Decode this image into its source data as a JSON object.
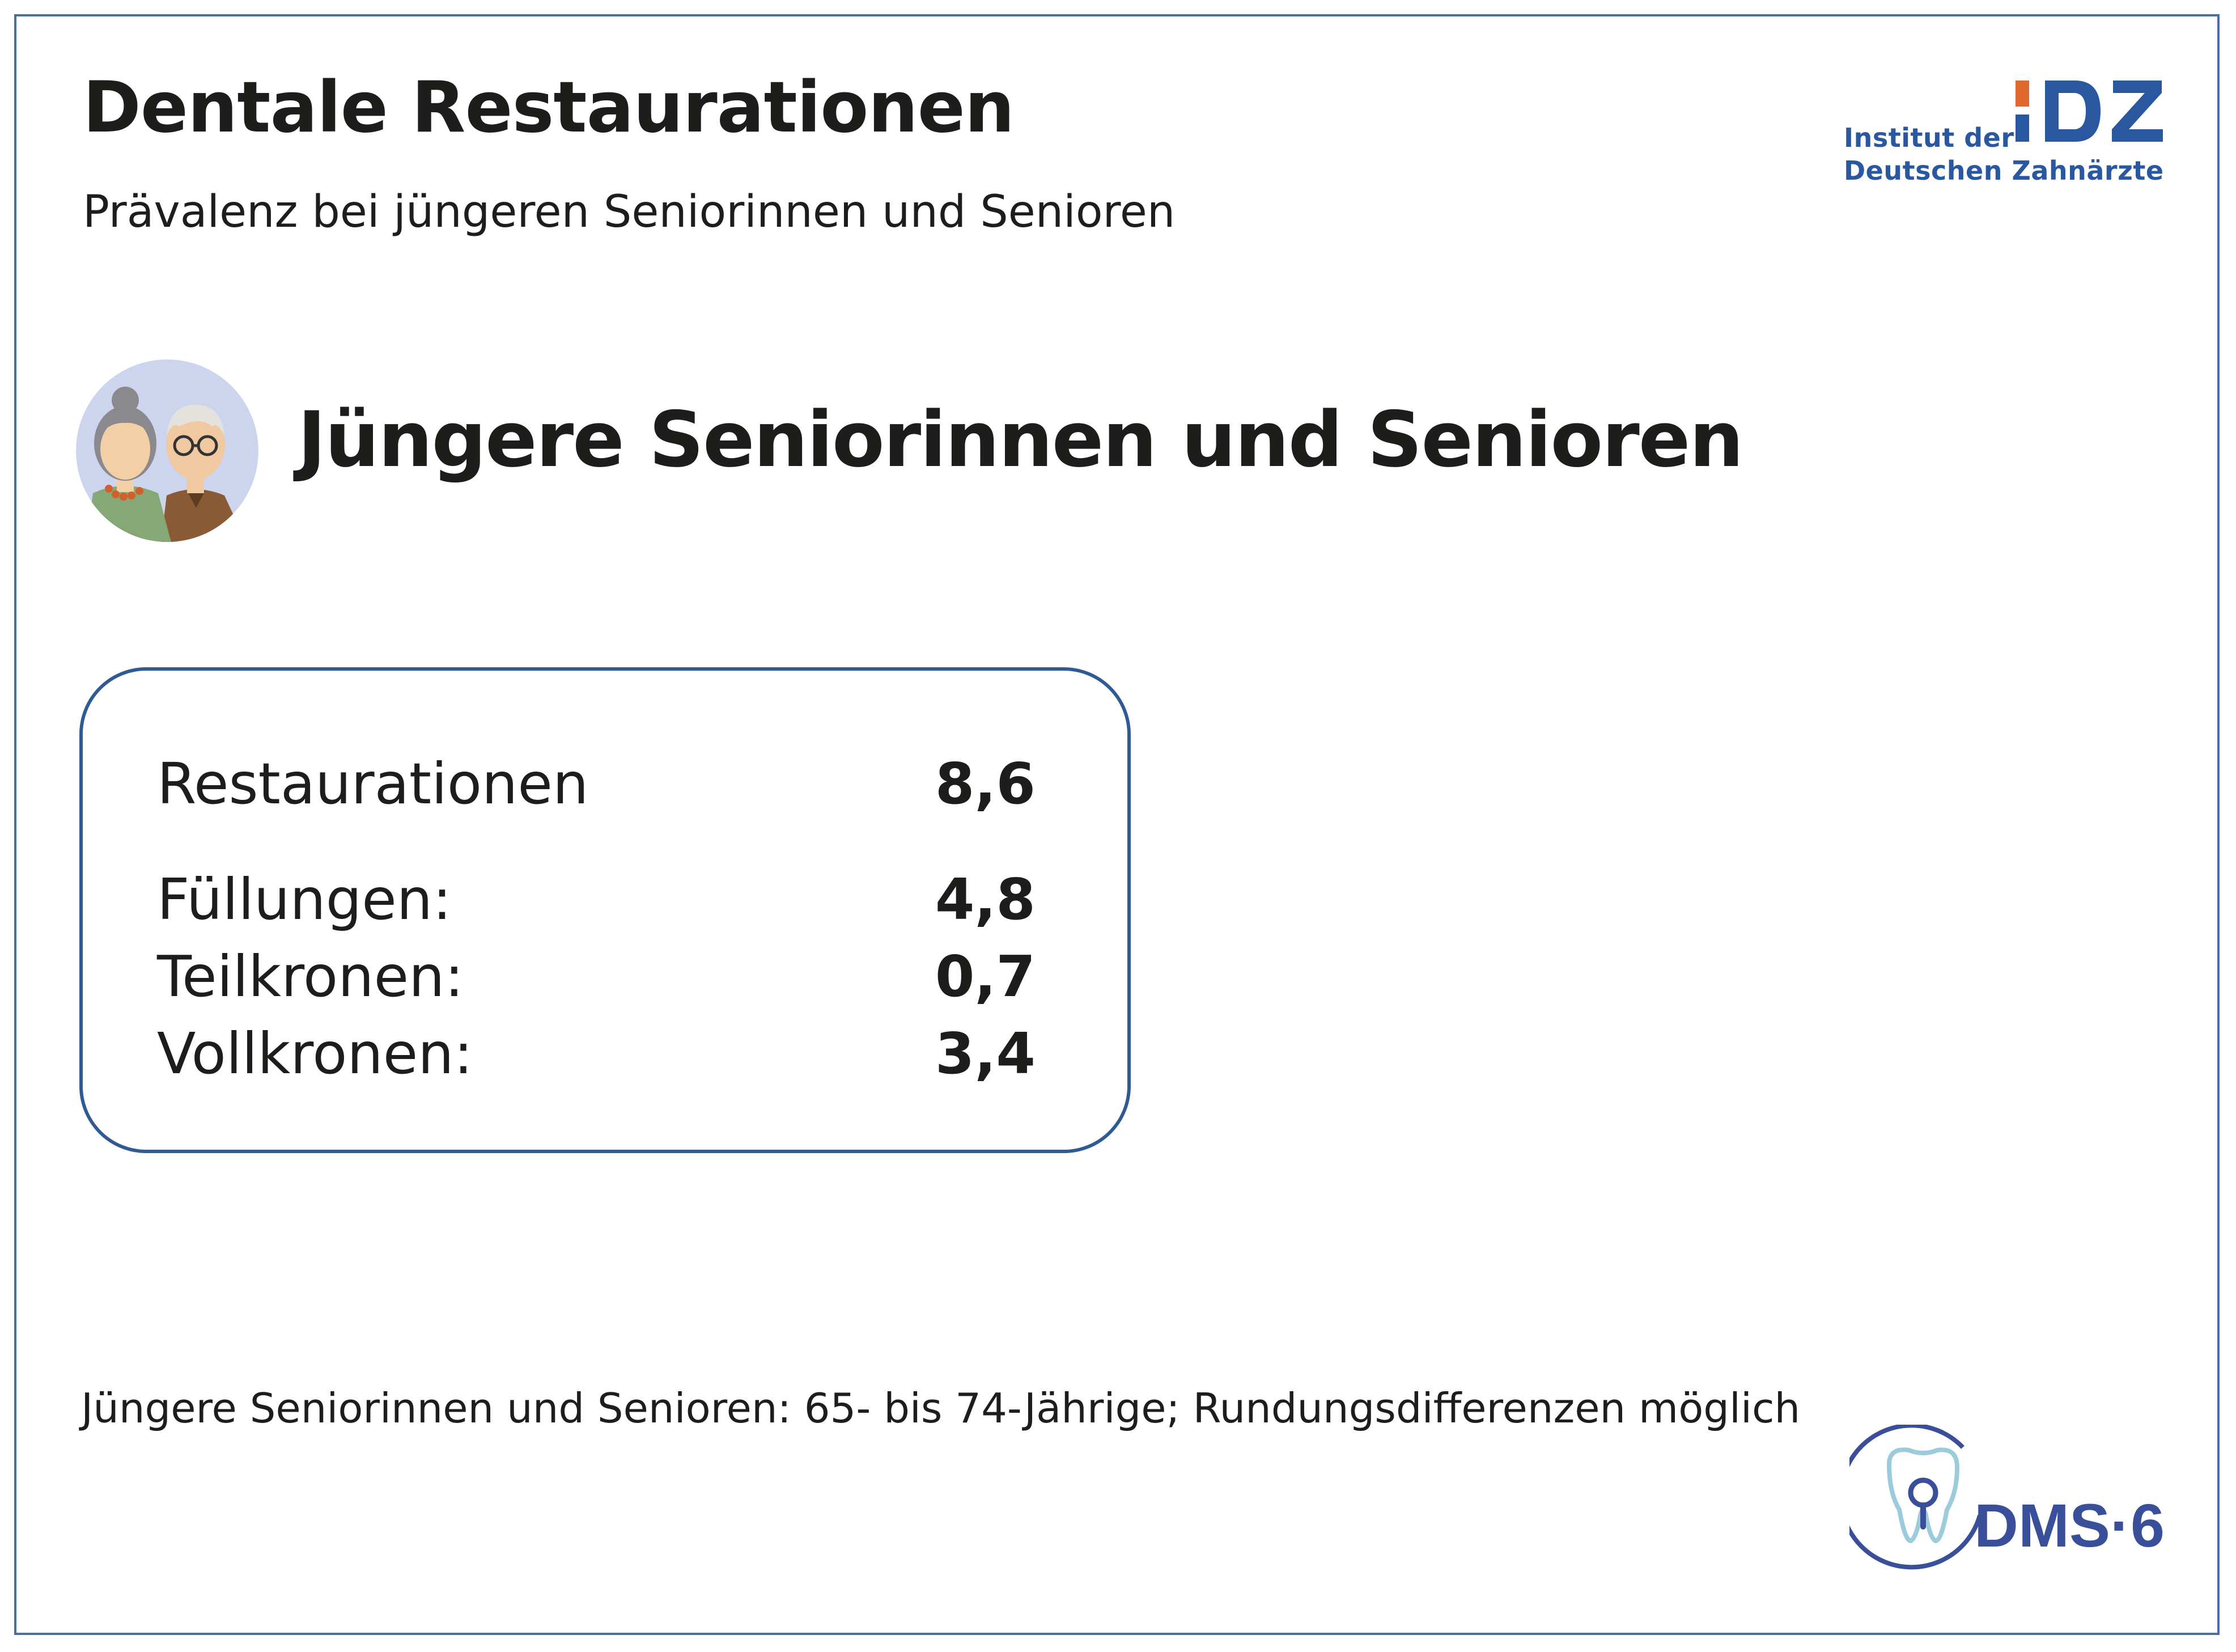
{
  "header": {
    "title": "Dentale Restaurationen",
    "subtitle": "Prävalenz bei jüngeren Seniorinnen und Senioren"
  },
  "idz_logo": {
    "line1": "Institut der",
    "line2": "Deutschen Zahnärzte",
    "mark": "IDZ",
    "colors": {
      "blue": "#2a58a0",
      "orange": "#e0682a"
    }
  },
  "group": {
    "icon": "senior-couple-icon",
    "heading": "Jüngere Seniorinnen und Senioren"
  },
  "stats": [
    {
      "label": "Restaurationen",
      "value": "8,6"
    },
    {
      "label": "Füllungen:",
      "value": "4,8"
    },
    {
      "label": "Teilkronen:",
      "value": "0,7"
    },
    {
      "label": "Vollkronen:",
      "value": "3,4"
    }
  ],
  "footnote": "Jüngere Seniorinnen und Senioren: 65- bis 74-Jährige; Rundungsdifferenzen möglich",
  "dms_logo": {
    "text": "DMS·6",
    "icon": "tooth-magnifier-icon",
    "colors": {
      "ring": "#3a4f9a",
      "tooth": "#9ccbdc"
    }
  },
  "colors": {
    "frame": "#4a6fa1",
    "box_border": "#2f5a94",
    "text": "#1d1d1b"
  }
}
